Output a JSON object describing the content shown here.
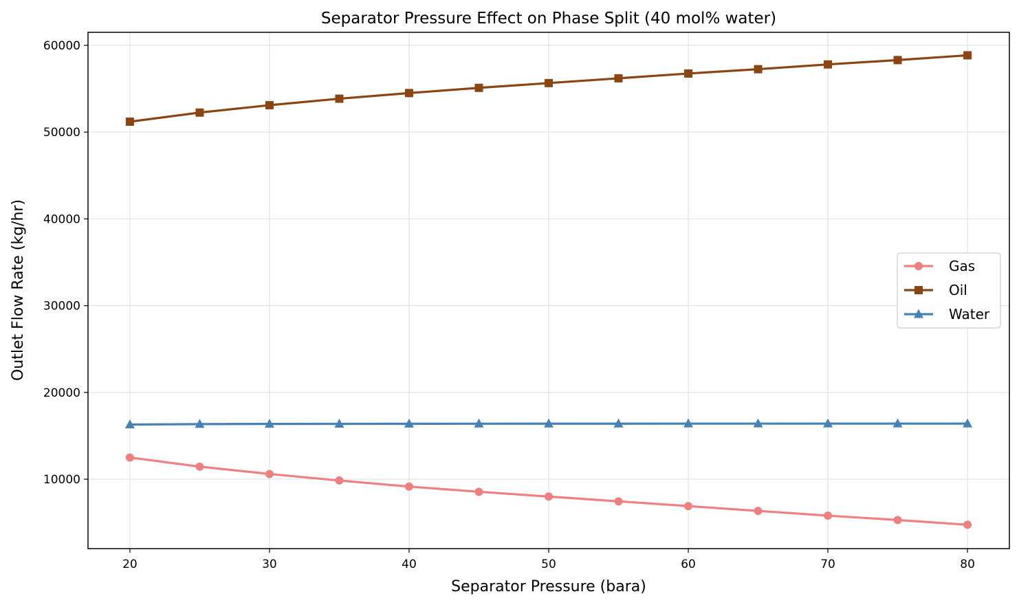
{
  "chart_data": {
    "type": "line",
    "title": "Separator Pressure Effect on Phase Split (40 mol% water)",
    "xlabel": "Separator Pressure (bara)",
    "ylabel": "Outlet Flow Rate (kg/hr)",
    "x": [
      20,
      25,
      30,
      35,
      40,
      45,
      50,
      55,
      60,
      65,
      70,
      75,
      80
    ],
    "xlim": [
      17,
      83
    ],
    "ylim": [
      2000,
      61500
    ],
    "xticks": [
      "20",
      "30",
      "40",
      "50",
      "60",
      "70",
      "80"
    ],
    "yticks": [
      "10000",
      "20000",
      "30000",
      "40000",
      "50000",
      "60000"
    ],
    "grid": true,
    "legend_position": "center-right",
    "series": [
      {
        "name": "Gas",
        "color": "#f08080",
        "marker": "circle",
        "values": [
          12500,
          11450,
          10600,
          9850,
          9150,
          8550,
          8000,
          7450,
          6900,
          6350,
          5800,
          5300,
          4750
        ]
      },
      {
        "name": "Oil",
        "color": "#8b4513",
        "marker": "square",
        "values": [
          51200,
          52250,
          53100,
          53850,
          54500,
          55100,
          55650,
          56200,
          56750,
          57250,
          57800,
          58300,
          58850
        ]
      },
      {
        "name": "Water",
        "color": "#4682b4",
        "marker": "triangle",
        "values": [
          16300,
          16350,
          16370,
          16380,
          16390,
          16395,
          16400,
          16400,
          16405,
          16405,
          16410,
          16410,
          16410
        ]
      }
    ]
  }
}
